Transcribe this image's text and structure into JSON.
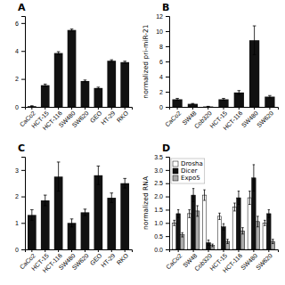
{
  "chart_data": [
    {
      "type": "bar",
      "title": "A",
      "categories": [
        "CaCo2",
        "HCT-15",
        "HCT-116",
        "SW480",
        "SW620",
        "GEO",
        "HT-29",
        "RKO"
      ],
      "values": [
        0.05,
        1.55,
        3.85,
        5.5,
        1.85,
        1.35,
        3.3,
        3.2
      ],
      "errors": [
        0.03,
        0.08,
        0.1,
        0.07,
        0.07,
        0.06,
        0.07,
        0.07
      ],
      "color": "#111111",
      "ylim": [
        0,
        6.5
      ],
      "yticks": [
        0,
        2,
        4,
        6
      ]
    },
    {
      "type": "bar",
      "title": "B",
      "categories": [
        "CaCo2",
        "SW48",
        "Cob320",
        "HCT-15",
        "HCT-116",
        "SW480",
        "SW620"
      ],
      "values": [
        1.0,
        0.4,
        0.05,
        1.0,
        1.9,
        8.8,
        1.35
      ],
      "errors": [
        0.12,
        0.05,
        0.02,
        0.12,
        0.25,
        1.9,
        0.15
      ],
      "color": "#111111",
      "ylabel": "normalized pri-miR-21",
      "ylim": [
        0,
        12
      ],
      "yticks": [
        0,
        2,
        4,
        6,
        8,
        10,
        12
      ]
    },
    {
      "type": "bar",
      "title": "C",
      "categories": [
        "CaCo2",
        "HCT-15",
        "HCT-116",
        "SW480",
        "SW620",
        "GEO",
        "HT-29",
        "RKO"
      ],
      "values": [
        1.3,
        1.85,
        2.75,
        1.0,
        1.4,
        2.8,
        1.95,
        2.5
      ],
      "errors": [
        0.2,
        0.2,
        0.55,
        0.15,
        0.12,
        0.35,
        0.18,
        0.18
      ],
      "color": "#111111",
      "ylim": [
        0,
        3.5
      ],
      "yticks": [
        0,
        1,
        2,
        3
      ]
    },
    {
      "type": "bar",
      "title": "D",
      "categories": [
        "CaCo2",
        "SW48",
        "Cob320",
        "HCT-15",
        "HCT-116",
        "SW480",
        "SW620"
      ],
      "series": [
        {
          "name": "Drosha",
          "color": "#ffffff",
          "values": [
            1.0,
            1.35,
            2.05,
            1.25,
            1.6,
            1.95,
            1.0
          ],
          "errors": [
            0.1,
            0.15,
            0.2,
            0.12,
            0.15,
            0.25,
            0.1
          ]
        },
        {
          "name": "Dicer",
          "color": "#111111",
          "values": [
            1.35,
            2.05,
            0.25,
            0.85,
            1.95,
            2.7,
            1.35
          ],
          "errors": [
            0.15,
            0.25,
            0.1,
            0.12,
            0.25,
            0.5,
            0.15
          ]
        },
        {
          "name": "Expo5",
          "color": "#aaaaaa",
          "values": [
            0.55,
            1.45,
            0.15,
            0.3,
            0.7,
            1.05,
            0.3
          ],
          "errors": [
            0.08,
            0.2,
            0.05,
            0.08,
            0.12,
            0.2,
            0.08
          ]
        }
      ],
      "ylabel": "normalized RNA",
      "legend": "upper-left",
      "ylim": [
        0,
        3.5
      ],
      "yticks": [
        {
          "value": 0,
          "label": "0.0"
        },
        0.5,
        {
          "value": 1,
          "label": "1.0"
        },
        1.5,
        {
          "value": 2,
          "label": "2.0"
        },
        2.5,
        {
          "value": 3,
          "label": "3.0"
        },
        3.5
      ]
    }
  ]
}
